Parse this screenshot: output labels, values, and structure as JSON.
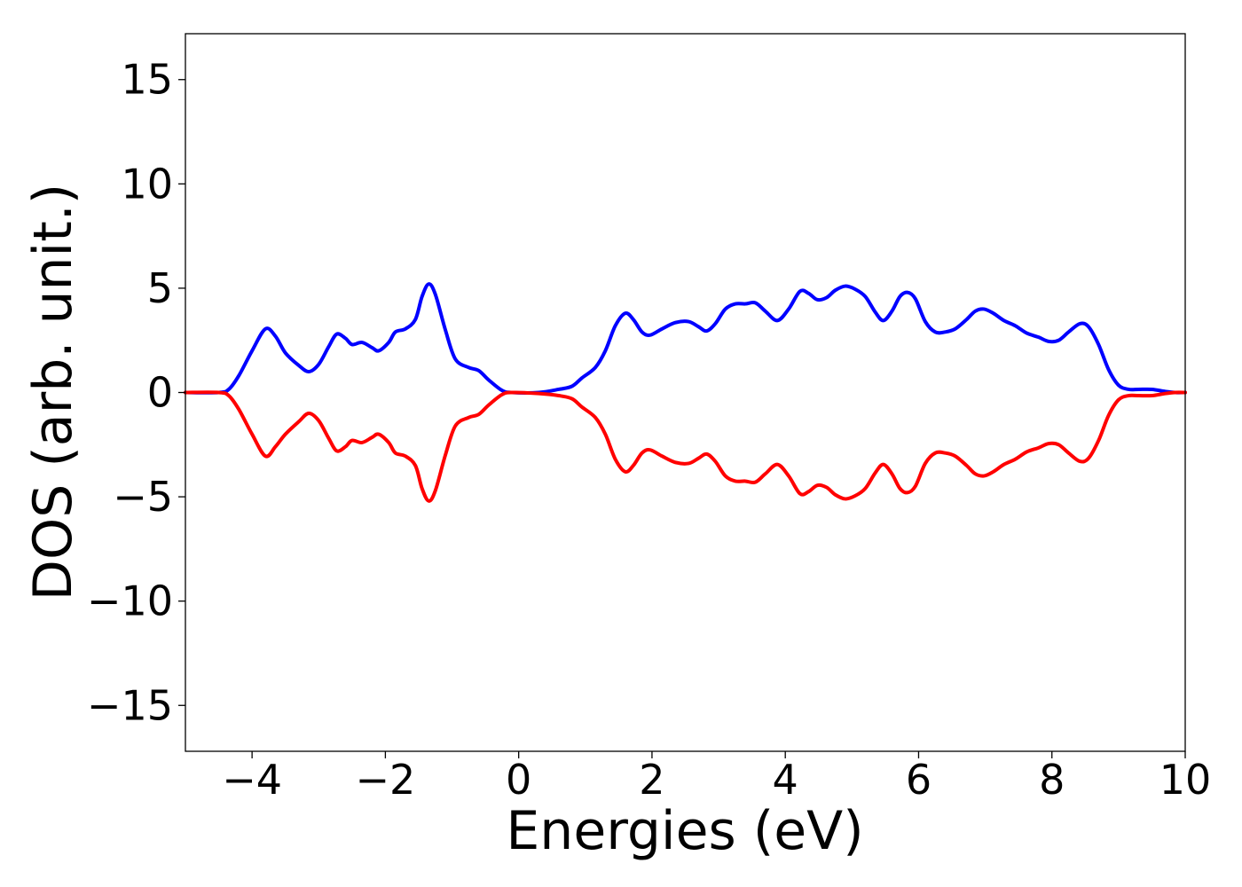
{
  "chart_data": {
    "type": "line",
    "title": "",
    "xlabel": "Energies (eV)",
    "ylabel": "DOS (arb. unit.)",
    "xlim": [
      -5,
      10
    ],
    "ylim": [
      -17.2,
      17.2
    ],
    "xticks": [
      -4,
      -2,
      0,
      2,
      4,
      6,
      8,
      10
    ],
    "xtick_labels": [
      "−4",
      "−2",
      "0",
      "2",
      "4",
      "6",
      "8",
      "10"
    ],
    "yticks": [
      -15,
      -10,
      -5,
      0,
      5,
      10,
      15
    ],
    "ytick_labels": [
      "−15",
      "−10",
      "−5",
      "0",
      "5",
      "10",
      "15"
    ],
    "grid": false,
    "legend": "none",
    "series": [
      {
        "color": "#0000ff",
        "points": [
          [
            -5.0,
            0.0
          ],
          [
            -4.5,
            0.0
          ],
          [
            -4.35,
            0.15
          ],
          [
            -4.2,
            0.8
          ],
          [
            -4.0,
            2.0
          ],
          [
            -3.8,
            3.05
          ],
          [
            -3.65,
            2.7
          ],
          [
            -3.5,
            1.9
          ],
          [
            -3.3,
            1.3
          ],
          [
            -3.15,
            1.0
          ],
          [
            -3.0,
            1.35
          ],
          [
            -2.85,
            2.2
          ],
          [
            -2.73,
            2.8
          ],
          [
            -2.6,
            2.6
          ],
          [
            -2.5,
            2.3
          ],
          [
            -2.35,
            2.4
          ],
          [
            -2.2,
            2.15
          ],
          [
            -2.1,
            2.0
          ],
          [
            -1.95,
            2.4
          ],
          [
            -1.85,
            2.9
          ],
          [
            -1.7,
            3.05
          ],
          [
            -1.55,
            3.5
          ],
          [
            -1.45,
            4.6
          ],
          [
            -1.35,
            5.2
          ],
          [
            -1.25,
            4.7
          ],
          [
            -1.1,
            3.0
          ],
          [
            -0.95,
            1.6
          ],
          [
            -0.75,
            1.2
          ],
          [
            -0.6,
            1.05
          ],
          [
            -0.45,
            0.6
          ],
          [
            -0.25,
            0.1
          ],
          [
            -0.1,
            0.0
          ],
          [
            0.3,
            0.0
          ],
          [
            0.6,
            0.15
          ],
          [
            0.8,
            0.3
          ],
          [
            0.95,
            0.7
          ],
          [
            1.15,
            1.2
          ],
          [
            1.3,
            2.0
          ],
          [
            1.45,
            3.2
          ],
          [
            1.6,
            3.8
          ],
          [
            1.72,
            3.5
          ],
          [
            1.85,
            2.9
          ],
          [
            1.97,
            2.75
          ],
          [
            2.15,
            3.05
          ],
          [
            2.35,
            3.35
          ],
          [
            2.55,
            3.4
          ],
          [
            2.7,
            3.15
          ],
          [
            2.82,
            2.95
          ],
          [
            2.95,
            3.3
          ],
          [
            3.1,
            4.0
          ],
          [
            3.25,
            4.25
          ],
          [
            3.4,
            4.25
          ],
          [
            3.55,
            4.3
          ],
          [
            3.7,
            3.9
          ],
          [
            3.88,
            3.45
          ],
          [
            4.05,
            4.0
          ],
          [
            4.22,
            4.85
          ],
          [
            4.35,
            4.75
          ],
          [
            4.48,
            4.45
          ],
          [
            4.62,
            4.55
          ],
          [
            4.75,
            4.9
          ],
          [
            4.9,
            5.1
          ],
          [
            5.05,
            4.95
          ],
          [
            5.2,
            4.6
          ],
          [
            5.35,
            3.85
          ],
          [
            5.47,
            3.45
          ],
          [
            5.6,
            3.9
          ],
          [
            5.72,
            4.6
          ],
          [
            5.83,
            4.8
          ],
          [
            5.95,
            4.5
          ],
          [
            6.1,
            3.4
          ],
          [
            6.25,
            2.9
          ],
          [
            6.4,
            2.9
          ],
          [
            6.55,
            3.05
          ],
          [
            6.72,
            3.5
          ],
          [
            6.85,
            3.9
          ],
          [
            6.98,
            4.0
          ],
          [
            7.12,
            3.8
          ],
          [
            7.28,
            3.45
          ],
          [
            7.45,
            3.2
          ],
          [
            7.62,
            2.85
          ],
          [
            7.8,
            2.65
          ],
          [
            7.95,
            2.45
          ],
          [
            8.1,
            2.5
          ],
          [
            8.25,
            2.9
          ],
          [
            8.42,
            3.3
          ],
          [
            8.55,
            3.15
          ],
          [
            8.7,
            2.3
          ],
          [
            8.85,
            1.1
          ],
          [
            9.0,
            0.35
          ],
          [
            9.15,
            0.15
          ],
          [
            9.3,
            0.15
          ],
          [
            9.5,
            0.15
          ],
          [
            9.7,
            0.05
          ],
          [
            9.85,
            0.0
          ],
          [
            10.0,
            0.0
          ]
        ]
      },
      {
        "color": "#ff0000",
        "points": [
          [
            -5.0,
            0.0
          ],
          [
            -4.5,
            0.0
          ],
          [
            -4.35,
            -0.15
          ],
          [
            -4.2,
            -0.8
          ],
          [
            -4.0,
            -2.0
          ],
          [
            -3.8,
            -3.05
          ],
          [
            -3.65,
            -2.6
          ],
          [
            -3.5,
            -2.0
          ],
          [
            -3.3,
            -1.4
          ],
          [
            -3.15,
            -1.0
          ],
          [
            -3.0,
            -1.35
          ],
          [
            -2.85,
            -2.2
          ],
          [
            -2.73,
            -2.8
          ],
          [
            -2.6,
            -2.6
          ],
          [
            -2.5,
            -2.3
          ],
          [
            -2.35,
            -2.4
          ],
          [
            -2.2,
            -2.15
          ],
          [
            -2.1,
            -2.0
          ],
          [
            -1.95,
            -2.4
          ],
          [
            -1.85,
            -2.9
          ],
          [
            -1.7,
            -3.05
          ],
          [
            -1.55,
            -3.5
          ],
          [
            -1.45,
            -4.6
          ],
          [
            -1.35,
            -5.2
          ],
          [
            -1.25,
            -4.7
          ],
          [
            -1.1,
            -3.0
          ],
          [
            -0.95,
            -1.6
          ],
          [
            -0.75,
            -1.2
          ],
          [
            -0.6,
            -1.05
          ],
          [
            -0.45,
            -0.6
          ],
          [
            -0.25,
            -0.1
          ],
          [
            -0.1,
            0.0
          ],
          [
            0.3,
            -0.05
          ],
          [
            0.6,
            -0.15
          ],
          [
            0.8,
            -0.3
          ],
          [
            0.95,
            -0.7
          ],
          [
            1.15,
            -1.2
          ],
          [
            1.3,
            -2.0
          ],
          [
            1.45,
            -3.2
          ],
          [
            1.6,
            -3.8
          ],
          [
            1.72,
            -3.5
          ],
          [
            1.85,
            -2.9
          ],
          [
            1.97,
            -2.75
          ],
          [
            2.15,
            -3.05
          ],
          [
            2.35,
            -3.35
          ],
          [
            2.55,
            -3.4
          ],
          [
            2.7,
            -3.15
          ],
          [
            2.82,
            -2.95
          ],
          [
            2.95,
            -3.3
          ],
          [
            3.1,
            -4.0
          ],
          [
            3.25,
            -4.25
          ],
          [
            3.4,
            -4.25
          ],
          [
            3.55,
            -4.3
          ],
          [
            3.7,
            -3.9
          ],
          [
            3.88,
            -3.45
          ],
          [
            4.05,
            -4.0
          ],
          [
            4.22,
            -4.85
          ],
          [
            4.35,
            -4.75
          ],
          [
            4.48,
            -4.45
          ],
          [
            4.62,
            -4.55
          ],
          [
            4.75,
            -4.9
          ],
          [
            4.9,
            -5.1
          ],
          [
            5.05,
            -4.95
          ],
          [
            5.2,
            -4.6
          ],
          [
            5.35,
            -3.85
          ],
          [
            5.47,
            -3.45
          ],
          [
            5.6,
            -3.9
          ],
          [
            5.72,
            -4.6
          ],
          [
            5.83,
            -4.8
          ],
          [
            5.95,
            -4.5
          ],
          [
            6.1,
            -3.4
          ],
          [
            6.25,
            -2.9
          ],
          [
            6.4,
            -2.9
          ],
          [
            6.55,
            -3.05
          ],
          [
            6.72,
            -3.5
          ],
          [
            6.85,
            -3.9
          ],
          [
            6.98,
            -4.0
          ],
          [
            7.12,
            -3.8
          ],
          [
            7.28,
            -3.45
          ],
          [
            7.45,
            -3.2
          ],
          [
            7.62,
            -2.85
          ],
          [
            7.8,
            -2.65
          ],
          [
            7.95,
            -2.45
          ],
          [
            8.1,
            -2.5
          ],
          [
            8.25,
            -2.9
          ],
          [
            8.42,
            -3.3
          ],
          [
            8.55,
            -3.15
          ],
          [
            8.7,
            -2.3
          ],
          [
            8.85,
            -1.1
          ],
          [
            9.0,
            -0.35
          ],
          [
            9.15,
            -0.15
          ],
          [
            9.3,
            -0.15
          ],
          [
            9.5,
            -0.15
          ],
          [
            9.7,
            -0.05
          ],
          [
            9.85,
            0.0
          ],
          [
            10.0,
            0.0
          ]
        ]
      }
    ]
  }
}
